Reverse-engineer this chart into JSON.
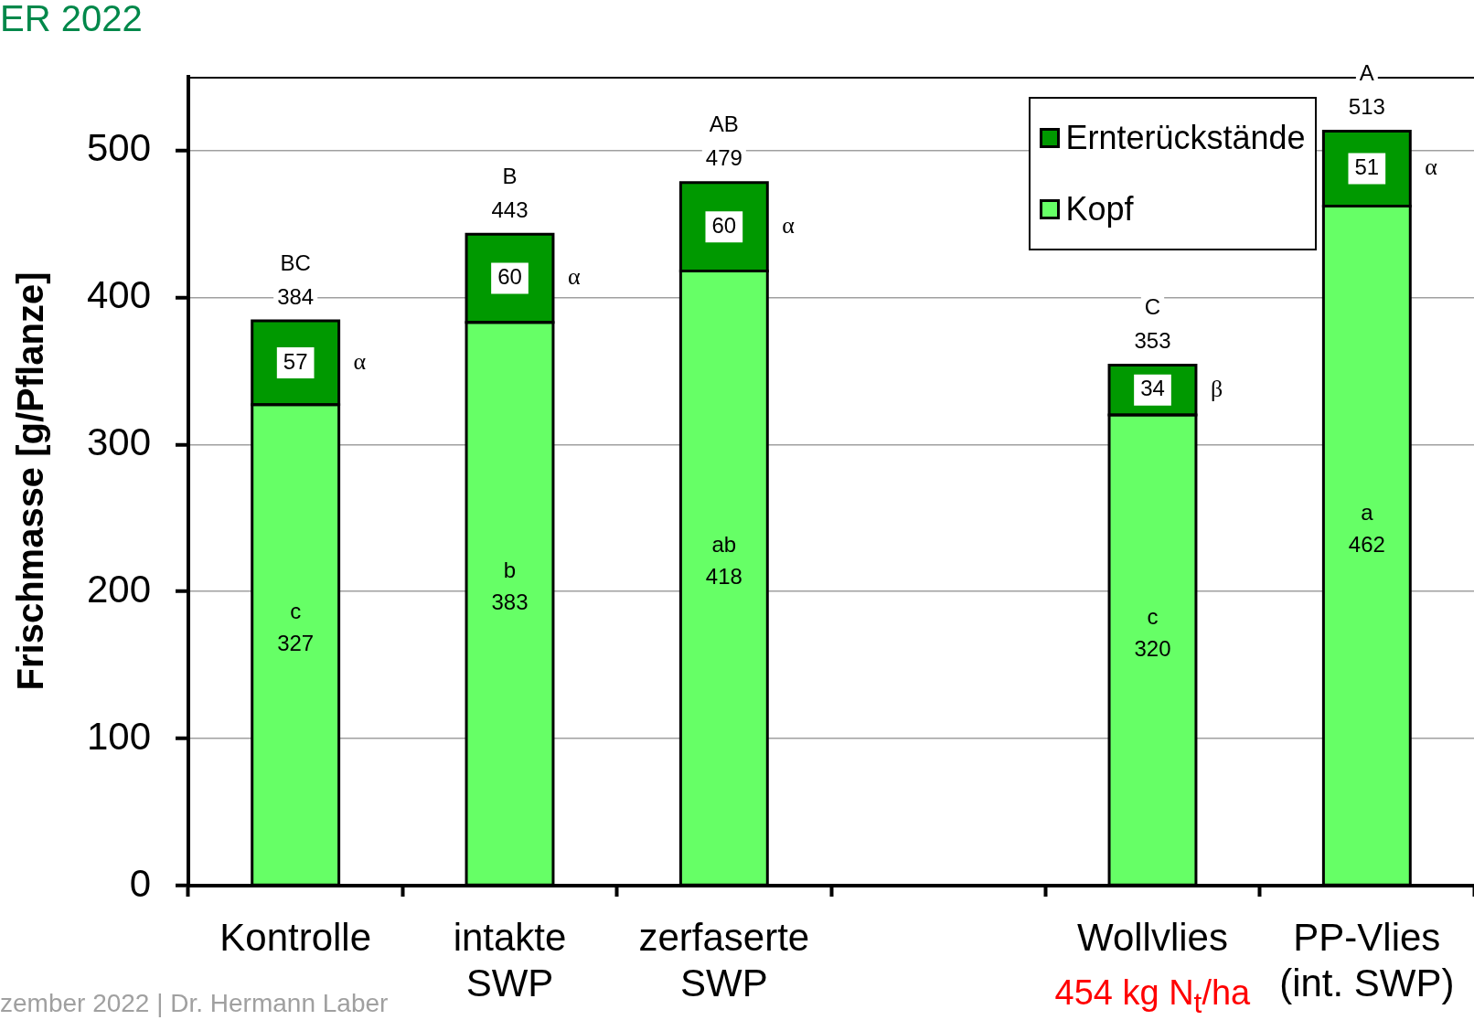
{
  "chart_data": {
    "type": "bar",
    "title": "ER 2022",
    "ylabel": "Frischmasse [g/Pflanze]",
    "categories": [
      "Kontrolle",
      "intakte SWP",
      "zerfaserte SWP",
      null,
      "Wollvlies",
      "PP-Vlies (int. SWP)"
    ],
    "series": [
      {
        "name": "Kopf",
        "color": "#66ff66",
        "values": [
          327,
          383,
          418,
          null,
          320,
          462
        ],
        "value_labels": [
          "c\n327",
          "b\n383",
          "ab\n418",
          null,
          "c\n320",
          "a\n462"
        ]
      },
      {
        "name": "Ernterückstände",
        "color": "#009900",
        "values": [
          57,
          60,
          60,
          null,
          34,
          51
        ],
        "value_labels": [
          "57",
          "60",
          "60",
          null,
          "34",
          "51"
        ]
      }
    ],
    "stacked": true,
    "totals": [
      "BC\n384",
      "B\n443",
      "AB\n479",
      null,
      "C\n353",
      "A\n513"
    ],
    "ylim": [
      0,
      550
    ],
    "yticks": [
      0,
      100,
      200,
      300,
      400,
      500
    ],
    "grid": "y",
    "legend": "top right",
    "annotations": [
      {
        "text": "α",
        "x": "Kontrolle",
        "y": 355.5
      },
      {
        "text": "α",
        "x": "intakte SWP",
        "y": 413
      },
      {
        "text": "α",
        "x": "zerfaserte SWP",
        "y": 448
      },
      {
        "text": "β",
        "x": "Wollvlies",
        "y": 337
      },
      {
        "text": "α",
        "x": "PP-Vlies (int. SWP)",
        "y": 487.5
      },
      "454 kg N$_{t}$/ha",
      "zember 2022 | Dr. Hermann Laber"
    ]
  }
}
